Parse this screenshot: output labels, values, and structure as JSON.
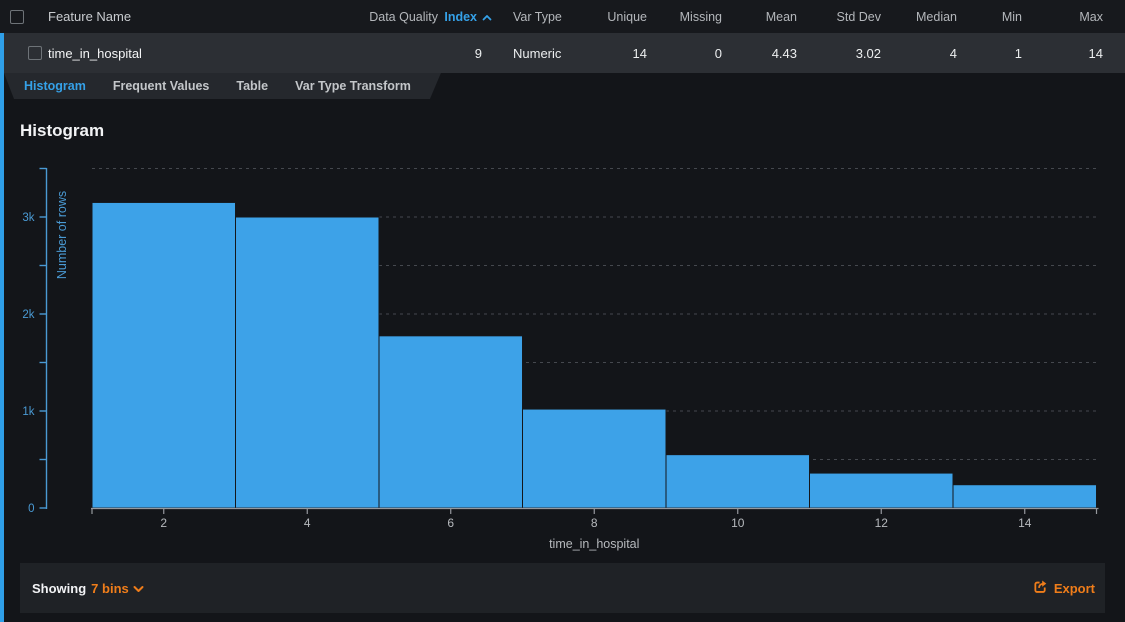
{
  "colors": {
    "accent_blue": "#35a1e8",
    "bar_blue": "#3da2e8",
    "axis_blue": "#4a9ad4",
    "orange": "#ef7d1a",
    "gridline": "#45484e",
    "x_axis_gray": "#96999e",
    "x_text_gray": "#b6b9bd"
  },
  "feature_table": {
    "columns": {
      "feature_name": "Feature Name",
      "data_quality": "Data Quality",
      "index": "Index",
      "var_type": "Var Type",
      "unique": "Unique",
      "missing": "Missing",
      "mean": "Mean",
      "std_dev": "Std Dev",
      "median": "Median",
      "min": "Min",
      "max": "Max"
    },
    "sorted_column": "Index",
    "sort_direction": "ascending",
    "icons": {
      "sort_icon": "chevron-up"
    },
    "row": {
      "name": "time_in_hospital",
      "data_quality": "",
      "index": "9",
      "var_type": "Numeric",
      "unique": "14",
      "missing": "0",
      "mean": "4.43",
      "std_dev": "3.02",
      "median": "4",
      "min": "1",
      "max": "14"
    }
  },
  "tabs": [
    {
      "label": "Histogram",
      "active": true
    },
    {
      "label": "Frequent Values",
      "active": false
    },
    {
      "label": "Table",
      "active": false
    },
    {
      "label": "Var Type Transform",
      "active": false
    }
  ],
  "panel": {
    "title": "Histogram"
  },
  "chart_data": {
    "type": "bar",
    "title": "Histogram",
    "xlabel": "time_in_hospital",
    "ylabel": "Number of rows",
    "bins": [
      {
        "range": [
          1,
          3
        ],
        "count": 3150
      },
      {
        "range": [
          3,
          5
        ],
        "count": 3000
      },
      {
        "range": [
          5,
          7
        ],
        "count": 1775
      },
      {
        "range": [
          7,
          9
        ],
        "count": 1020
      },
      {
        "range": [
          9,
          11
        ],
        "count": 550
      },
      {
        "range": [
          11,
          13
        ],
        "count": 360
      },
      {
        "range": [
          13,
          15
        ],
        "count": 240
      }
    ],
    "xlim": [
      1,
      15
    ],
    "ylim": [
      0,
      3600
    ],
    "x_tick_values": [
      2,
      4,
      6,
      8,
      10,
      12,
      14
    ],
    "y_ticks": [
      {
        "value": 0,
        "label": "0"
      },
      {
        "value": 1000,
        "label": "1k"
      },
      {
        "value": 2000,
        "label": "2k"
      },
      {
        "value": 3000,
        "label": "3k"
      }
    ],
    "y_minor_tick_step": 500,
    "gridlines": {
      "orientation": "horizontal",
      "step": 500,
      "style": "dashed"
    },
    "legend": "none",
    "bar_color": "#3da2e8"
  },
  "footer": {
    "showing_label": "Showing",
    "bins_value": "7 bins",
    "icons": {
      "bins_icon": "chevron-down",
      "export_icon": "export-arrow-box"
    },
    "export_label": "Export"
  }
}
